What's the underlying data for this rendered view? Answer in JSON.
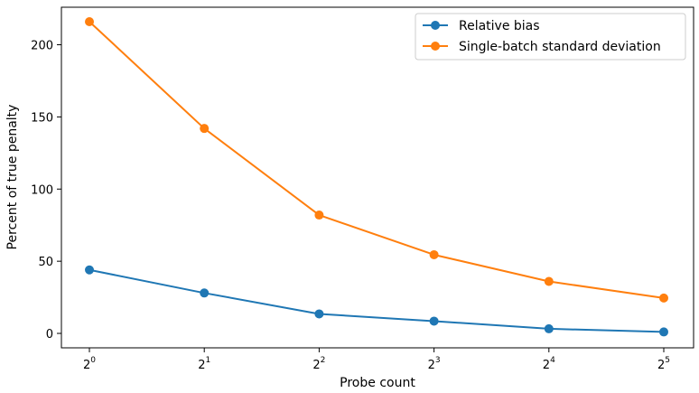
{
  "chart_data": {
    "type": "line",
    "title": "",
    "xlabel": "Probe count",
    "ylabel": "Percent of true penalty",
    "x": [
      1,
      2,
      4,
      8,
      16,
      32
    ],
    "x_scale": "log2",
    "x_tick_labels": [
      {
        "base": "2",
        "exp": "0"
      },
      {
        "base": "2",
        "exp": "1"
      },
      {
        "base": "2",
        "exp": "2"
      },
      {
        "base": "2",
        "exp": "3"
      },
      {
        "base": "2",
        "exp": "4"
      },
      {
        "base": "2",
        "exp": "5"
      }
    ],
    "y_ticks": [
      0,
      50,
      100,
      150,
      200
    ],
    "ylim": [
      -10,
      226
    ],
    "grid": false,
    "legend_position": "top-right",
    "series": [
      {
        "name": "Relative bias",
        "color": "#1f77b4",
        "values": [
          44,
          28,
          13.5,
          8.5,
          3.2,
          1
        ]
      },
      {
        "name": "Single-batch standard deviation",
        "color": "#ff7f0e",
        "values": [
          216,
          142,
          82,
          54.5,
          36,
          24.5
        ]
      }
    ]
  }
}
